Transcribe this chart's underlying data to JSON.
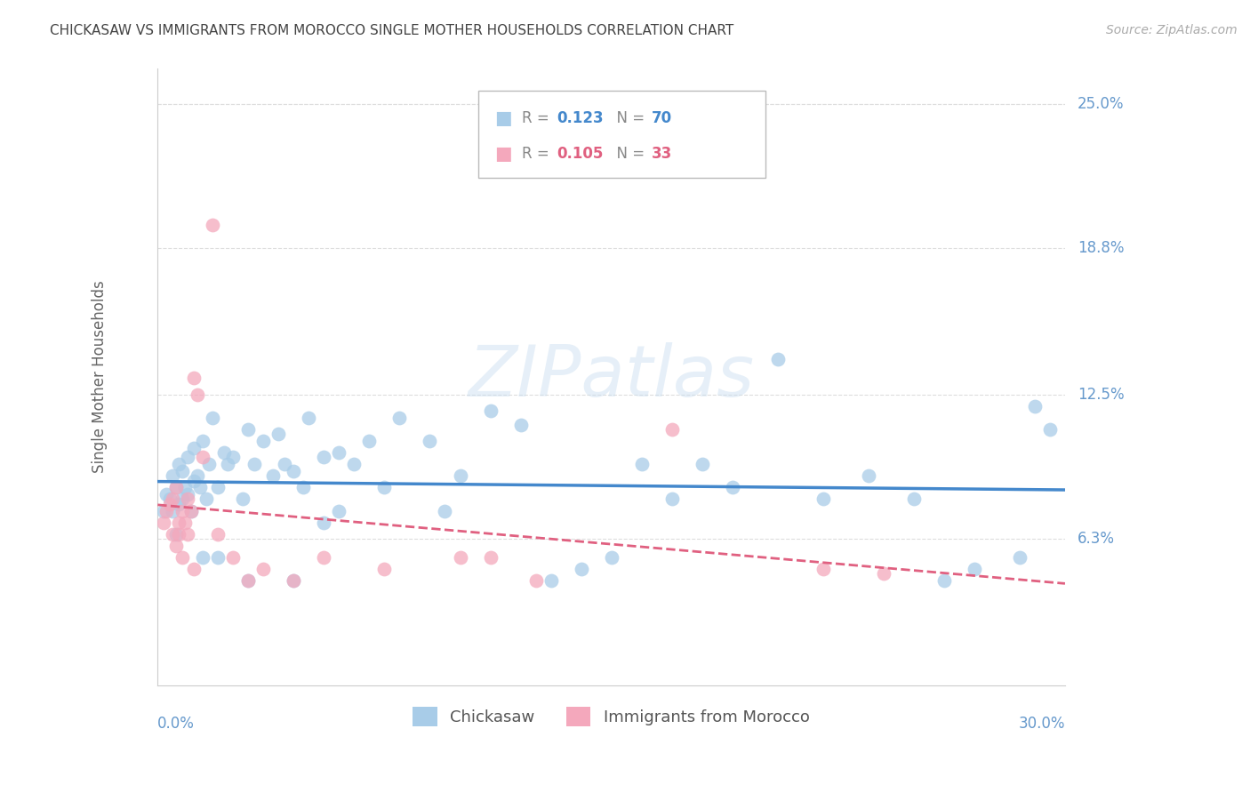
{
  "title": "CHICKASAW VS IMMIGRANTS FROM MOROCCO SINGLE MOTHER HOUSEHOLDS CORRELATION CHART",
  "source": "Source: ZipAtlas.com",
  "ylabel": "Single Mother Households",
  "ytick_labels": [
    "25.0%",
    "18.8%",
    "12.5%",
    "6.3%"
  ],
  "ytick_values": [
    25.0,
    18.8,
    12.5,
    6.3
  ],
  "xlim": [
    0.0,
    30.0
  ],
  "ylim": [
    0.0,
    26.5
  ],
  "color_blue": "#a8cce8",
  "color_pink": "#f4a8bc",
  "trendline_blue": "#4488cc",
  "trendline_pink": "#e06080",
  "title_color": "#444444",
  "source_color": "#aaaaaa",
  "tick_color": "#6699cc",
  "grid_color": "#dddddd",
  "chickasaw_x": [
    0.2,
    0.3,
    0.4,
    0.5,
    0.5,
    0.6,
    0.6,
    0.7,
    0.7,
    0.8,
    0.8,
    0.9,
    1.0,
    1.0,
    1.1,
    1.2,
    1.2,
    1.3,
    1.4,
    1.5,
    1.6,
    1.7,
    1.8,
    2.0,
    2.2,
    2.3,
    2.5,
    2.8,
    3.0,
    3.2,
    3.5,
    3.8,
    4.0,
    4.2,
    4.5,
    4.8,
    5.0,
    5.5,
    6.0,
    6.5,
    7.0,
    7.5,
    8.0,
    9.0,
    9.5,
    10.0,
    11.0,
    12.0,
    13.0,
    14.0,
    15.0,
    16.0,
    17.0,
    18.0,
    19.0,
    20.5,
    22.0,
    23.5,
    25.0,
    26.0,
    27.0,
    28.5,
    29.0,
    29.5,
    5.5,
    6.0,
    1.5,
    2.0,
    3.0,
    4.5
  ],
  "chickasaw_y": [
    7.5,
    8.2,
    8.0,
    9.0,
    7.5,
    8.5,
    6.5,
    9.5,
    7.8,
    8.0,
    9.2,
    8.5,
    9.8,
    8.2,
    7.5,
    8.8,
    10.2,
    9.0,
    8.5,
    10.5,
    8.0,
    9.5,
    11.5,
    8.5,
    10.0,
    9.5,
    9.8,
    8.0,
    11.0,
    9.5,
    10.5,
    9.0,
    10.8,
    9.5,
    9.2,
    8.5,
    11.5,
    9.8,
    10.0,
    9.5,
    10.5,
    8.5,
    11.5,
    10.5,
    7.5,
    9.0,
    11.8,
    11.2,
    4.5,
    5.0,
    5.5,
    9.5,
    8.0,
    9.5,
    8.5,
    14.0,
    8.0,
    9.0,
    8.0,
    4.5,
    5.0,
    5.5,
    12.0,
    11.0,
    7.0,
    7.5,
    5.5,
    5.5,
    4.5,
    4.5
  ],
  "morocco_x": [
    0.2,
    0.3,
    0.4,
    0.5,
    0.5,
    0.6,
    0.7,
    0.7,
    0.8,
    0.9,
    1.0,
    1.0,
    1.1,
    1.2,
    1.3,
    1.5,
    1.8,
    2.0,
    2.5,
    3.0,
    3.5,
    4.5,
    5.5,
    7.5,
    10.0,
    11.0,
    12.5,
    17.0,
    22.0,
    24.0,
    0.6,
    0.8,
    1.2
  ],
  "morocco_y": [
    7.0,
    7.5,
    7.8,
    6.5,
    8.0,
    8.5,
    7.0,
    6.5,
    7.5,
    7.0,
    8.0,
    6.5,
    7.5,
    13.2,
    12.5,
    9.8,
    19.8,
    6.5,
    5.5,
    4.5,
    5.0,
    4.5,
    5.5,
    5.0,
    5.5,
    5.5,
    4.5,
    11.0,
    5.0,
    4.8,
    6.0,
    5.5,
    5.0
  ]
}
